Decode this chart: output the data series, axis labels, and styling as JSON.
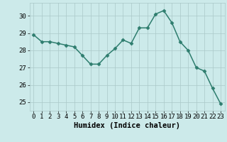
{
  "x": [
    0,
    1,
    2,
    3,
    4,
    5,
    6,
    7,
    8,
    9,
    10,
    11,
    12,
    13,
    14,
    15,
    16,
    17,
    18,
    19,
    20,
    21,
    22,
    23
  ],
  "y": [
    28.9,
    28.5,
    28.5,
    28.4,
    28.3,
    28.2,
    27.7,
    27.2,
    27.2,
    27.7,
    28.1,
    28.6,
    28.4,
    29.3,
    29.3,
    30.1,
    30.3,
    29.6,
    28.5,
    28.0,
    27.0,
    26.8,
    25.8,
    24.9
  ],
  "xlabel": "Humidex (Indice chaleur)",
  "ylim": [
    24.5,
    30.75
  ],
  "xlim": [
    -0.5,
    23.5
  ],
  "yticks": [
    25,
    26,
    27,
    28,
    29,
    30
  ],
  "line_color": "#2e7d6e",
  "marker": "D",
  "marker_size": 2.5,
  "bg_color": "#cceaea",
  "grid_color": "#aac8c8",
  "xlabel_fontsize": 7.5,
  "tick_fontsize": 6.5,
  "linewidth": 1.1
}
